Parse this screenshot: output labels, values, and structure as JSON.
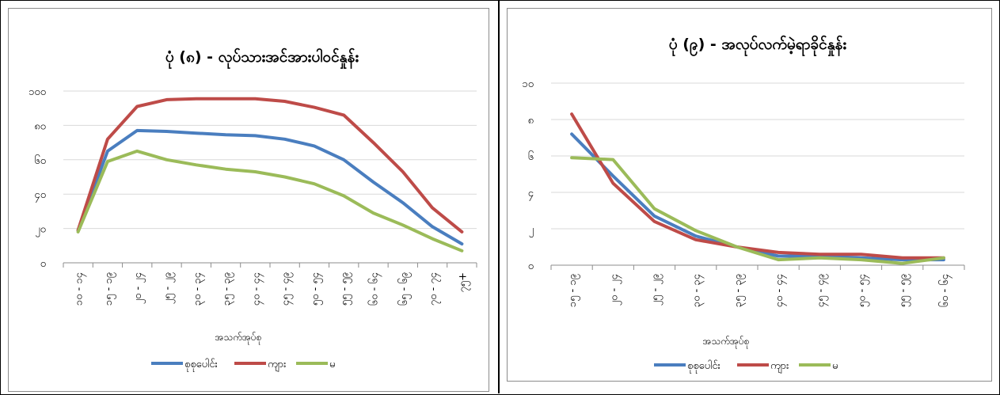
{
  "chart_data": [
    {
      "type": "line",
      "title": "ပုံ (၈) - လုပ်သားအင်အားပါဝင်နှုန်း",
      "xlabel": "အသက်အုပ်စု",
      "ylabel": "",
      "ylim": [
        0,
        100
      ],
      "yticks": [
        0,
        20,
        40,
        60,
        80,
        100
      ],
      "ytick_labels": [
        "၀",
        "၂၀",
        "၄၀",
        "၆၀",
        "၈၀",
        "၁၀၀"
      ],
      "grid": true,
      "legend_position": "bottom",
      "categories": [
        "၁၀ - ၁၄",
        "၁၅ - ၁၉",
        "၂၀ - ၂၄",
        "၂၅ - ၂၉",
        "၃၀ - ၃၄",
        "၃၅ - ၃၉",
        "၄၀ - ၄၄",
        "၄၅ - ၄၉",
        "၅၀ - ၅၄",
        "၅၅ - ၅၉",
        "၆၀ - ၆၄",
        "၆၅ - ၆၉",
        "၇၀ - ၇၄",
        "၇၅+"
      ],
      "series": [
        {
          "name": "စုစုပေါင်း",
          "color": "#4a7ebf",
          "values": [
            19,
            65,
            77,
            76.5,
            75.5,
            74.5,
            74,
            72,
            68,
            60,
            47,
            35,
            21,
            11
          ]
        },
        {
          "name": "ကျား",
          "color": "#be4b48",
          "values": [
            19,
            72,
            91,
            95,
            95.5,
            95.5,
            95.5,
            94,
            90.5,
            86,
            70,
            53,
            32,
            18
          ]
        },
        {
          "name": "မ",
          "color": "#9bbb59",
          "values": [
            18,
            59,
            65,
            60,
            57,
            54.5,
            53,
            50,
            46,
            39,
            29,
            22,
            14,
            7
          ]
        }
      ]
    },
    {
      "type": "line",
      "title": "ပုံ (၉) - အလုပ်လက်မဲ့ရာခိုင်နှုန်း",
      "xlabel": "အသက်အုပ်စု",
      "ylabel": "",
      "ylim": [
        0,
        10
      ],
      "yticks": [
        0,
        2,
        4,
        6,
        8,
        10
      ],
      "ytick_labels": [
        "၀",
        "၂",
        "၄",
        "၆",
        "၈",
        "၁၀"
      ],
      "grid": true,
      "legend_position": "bottom",
      "categories": [
        "၁၅ - ၁၉",
        "၂၀ - ၂၄",
        "၂၅ - ၂၉",
        "၃၀ - ၃၄",
        "၃၅ - ၃၉",
        "၄၀ - ၄၄",
        "၄၅ - ၄၉",
        "၅၀ - ၅၄",
        "၅၅ - ၅၉",
        "၆၀ - ၆၄"
      ],
      "series": [
        {
          "name": "စုစုပေါင်း",
          "color": "#4a7ebf",
          "values": [
            7.2,
            4.9,
            2.7,
            1.6,
            1.0,
            0.5,
            0.5,
            0.4,
            0.3,
            0.3
          ]
        },
        {
          "name": "ကျား",
          "color": "#be4b48",
          "values": [
            8.3,
            4.5,
            2.4,
            1.4,
            1.0,
            0.7,
            0.6,
            0.6,
            0.4,
            0.4
          ]
        },
        {
          "name": "မ",
          "color": "#9bbb59",
          "values": [
            5.9,
            5.8,
            3.1,
            1.9,
            1.0,
            0.3,
            0.4,
            0.3,
            0.1,
            0.4
          ]
        }
      ]
    }
  ]
}
